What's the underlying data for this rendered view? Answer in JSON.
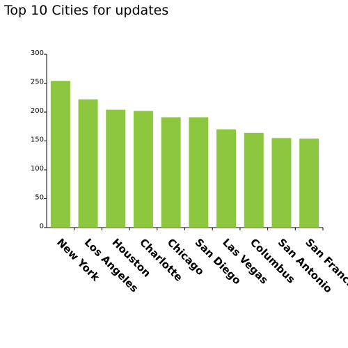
{
  "chart_data": {
    "type": "bar",
    "title": "Top 10 Cities for updates",
    "categories": [
      "New York",
      "Los Angeles",
      "Houston",
      "Charlotte",
      "Chicago",
      "San Diego",
      "Las Vegas",
      "Columbus",
      "San Antonio",
      "San Francisco"
    ],
    "values": [
      254,
      222,
      204,
      202,
      191,
      191,
      170,
      164,
      155,
      154
    ],
    "ylim": [
      0,
      300
    ],
    "yticks": [
      0,
      50,
      100,
      150,
      200,
      250,
      300
    ],
    "xlabel": "",
    "ylabel": "",
    "grid": false,
    "bar_color": "#8dc63f"
  }
}
